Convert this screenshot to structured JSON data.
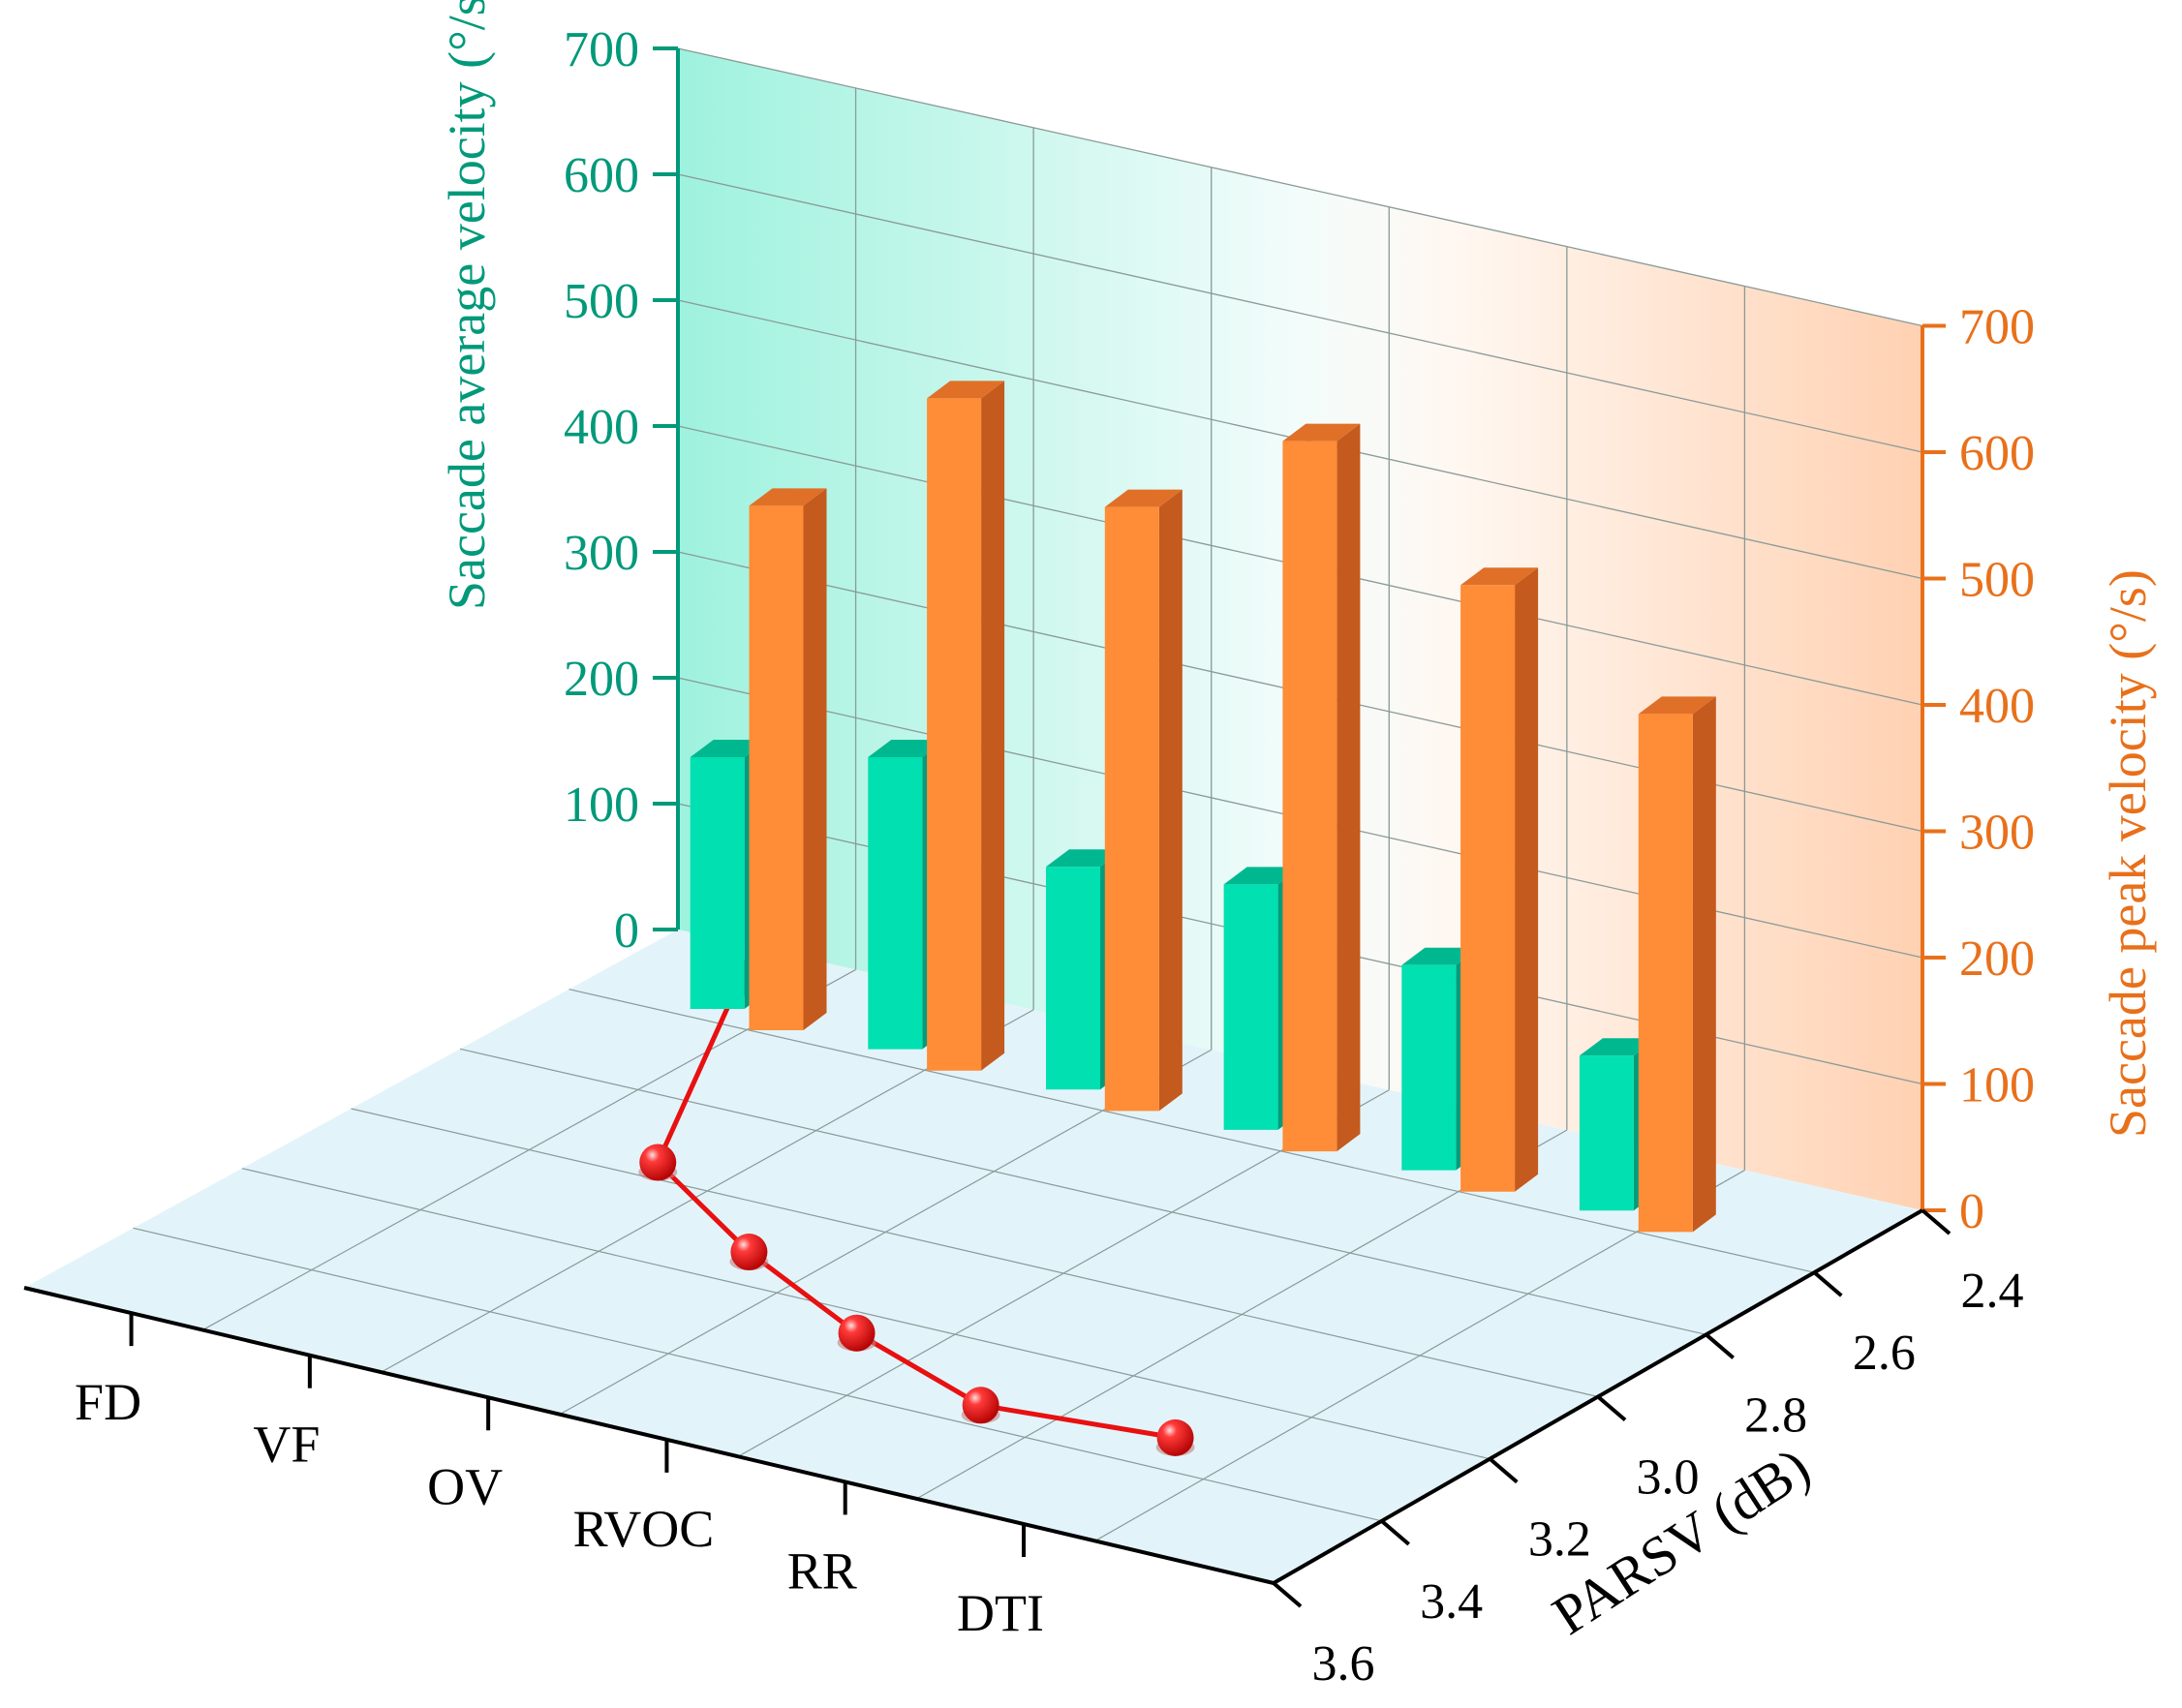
{
  "chart_data": {
    "type": "bar3d",
    "categories": [
      "FD",
      "VF",
      "OV",
      "RVOC",
      "RR",
      "DTI"
    ],
    "series": [
      {
        "name": "Saccade average velocity",
        "axis": "left",
        "values": [
          200,
          232,
          177,
          195,
          163,
          123
        ]
      },
      {
        "name": "Saccade peak velocity",
        "axis": "right",
        "values": [
          415,
          532,
          478,
          562,
          480,
          410
        ]
      },
      {
        "name": "PARSV",
        "axis": "floor",
        "values": [
          2.48,
          2.96,
          3.12,
          3.25,
          3.35,
          3.32
        ]
      }
    ],
    "left_axis": {
      "label": "Saccade average velocity (°/s)",
      "range": [
        0,
        700
      ],
      "ticks": [
        "0",
        "100",
        "200",
        "300",
        "400",
        "500",
        "600",
        "700"
      ]
    },
    "right_axis": {
      "label": "Saccade peak velocity (°/s)",
      "range": [
        0,
        700
      ],
      "ticks": [
        "0",
        "100",
        "200",
        "300",
        "400",
        "500",
        "600",
        "700"
      ]
    },
    "depth_axis": {
      "label": "PARSV (dB)",
      "range": [
        2.4,
        3.6
      ],
      "ticks": [
        "2.4",
        "2.6",
        "2.8",
        "3.0",
        "3.2",
        "3.4",
        "3.6"
      ]
    },
    "colors": {
      "avg_front": "#00E0B0",
      "avg_side": "#009C7C",
      "avg_top": "#00B890",
      "peak_front": "#FF8C36",
      "peak_side": "#C45A1E",
      "peak_top": "#E07028",
      "left_axis_color": "#00997A",
      "right_axis_color": "#E8701A",
      "line_color": "#E81010",
      "floor_color": "#E2F4FA"
    }
  }
}
